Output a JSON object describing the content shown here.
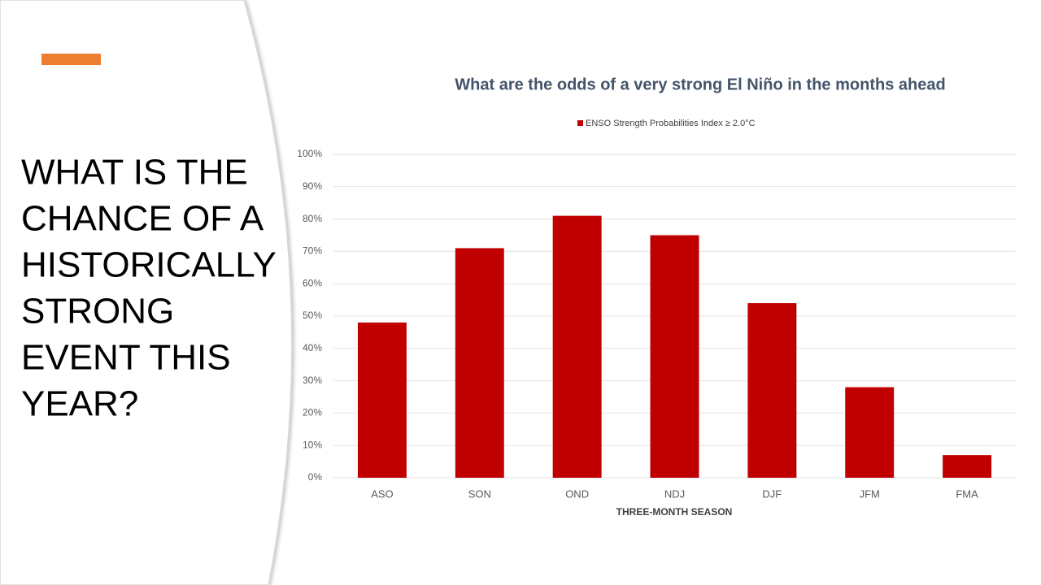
{
  "slide": {
    "heading_lines": [
      "WHAT IS THE",
      "CHANCE OF A",
      "HISTORICALLY",
      "STRONG",
      "EVENT THIS",
      "YEAR?"
    ]
  },
  "chart_data": {
    "type": "bar",
    "title": "What are the odds of a very strong El Niño in the months ahead",
    "x_label": "THREE-MONTH SEASON",
    "categories": [
      "ASO",
      "SON",
      "OND",
      "NDJ",
      "DJF",
      "JFM",
      "FMA"
    ],
    "series": [
      {
        "name": "ENSO Strength Probabilities Index ≥ 2.0°C",
        "color": "#c00000",
        "values": [
          48,
          71,
          81,
          75,
          54,
          28,
          7
        ]
      }
    ],
    "ylim": [
      0,
      100
    ],
    "yticks": [
      {
        "value": 0,
        "label": "0%"
      },
      {
        "value": 10,
        "label": "10%"
      },
      {
        "value": 20,
        "label": "20%"
      },
      {
        "value": 30,
        "label": "30%"
      },
      {
        "value": 40,
        "label": "40%"
      },
      {
        "value": 50,
        "label": "50%"
      },
      {
        "value": 60,
        "label": "60%"
      },
      {
        "value": 70,
        "label": "70%"
      },
      {
        "value": 80,
        "label": "80%"
      },
      {
        "value": 90,
        "label": "90%"
      },
      {
        "value": 100,
        "label": "100%"
      }
    ],
    "grid": true,
    "legend": "top"
  }
}
